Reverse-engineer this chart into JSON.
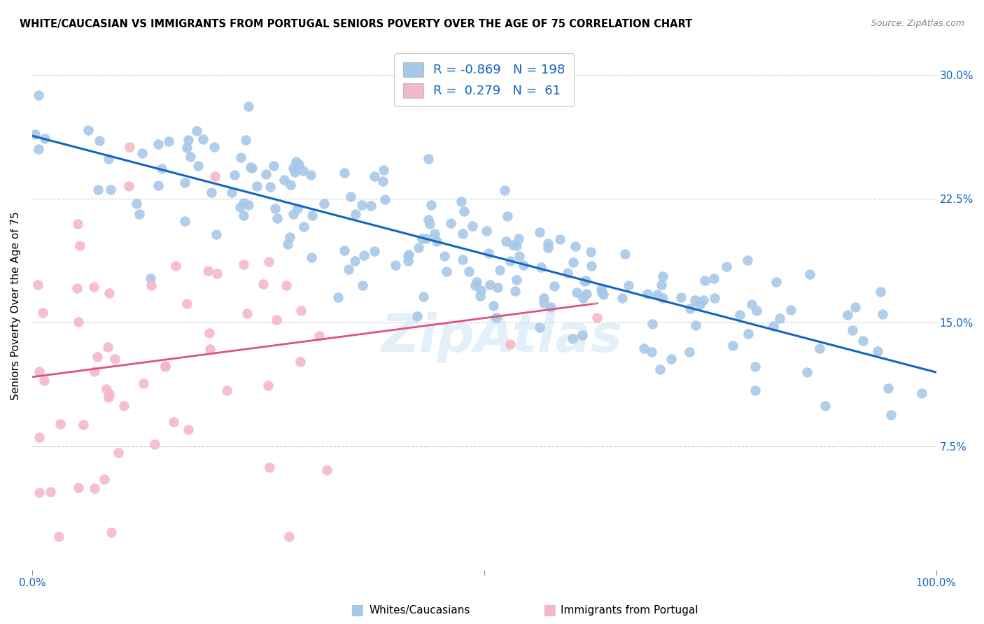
{
  "title": "WHITE/CAUCASIAN VS IMMIGRANTS FROM PORTUGAL SENIORS POVERTY OVER THE AGE OF 75 CORRELATION CHART",
  "source": "Source: ZipAtlas.com",
  "ylabel": "Seniors Poverty Over the Age of 75",
  "xlim": [
    0,
    1.0
  ],
  "ylim": [
    0,
    0.32
  ],
  "yticks": [
    0.075,
    0.15,
    0.225,
    0.3
  ],
  "yticklabels": [
    "7.5%",
    "15.0%",
    "22.5%",
    "30.0%"
  ],
  "xtick_positions": [
    0.0,
    0.5,
    1.0
  ],
  "xticklabels": [
    "0.0%",
    "",
    "100.0%"
  ],
  "legend_R1": "-0.869",
  "legend_N1": "198",
  "legend_R2": "0.279",
  "legend_N2": "61",
  "blue_color": "#a8c8e8",
  "pink_color": "#f5b8c8",
  "blue_line_color": "#1565c0",
  "pink_line_color": "#e05080",
  "pink_dash_color": "#d0a0b0",
  "watermark": "ZipAtlas",
  "legend_label1": "Whites/Caucasians",
  "legend_label2": "Immigrants from Portugal",
  "blue_R": -0.869,
  "blue_N": 198,
  "pink_R": 0.279,
  "pink_N": 61,
  "blue_seed": 42,
  "pink_seed": 7,
  "title_fontsize": 10.5,
  "source_fontsize": 9,
  "tick_fontsize": 11,
  "ylabel_fontsize": 11
}
